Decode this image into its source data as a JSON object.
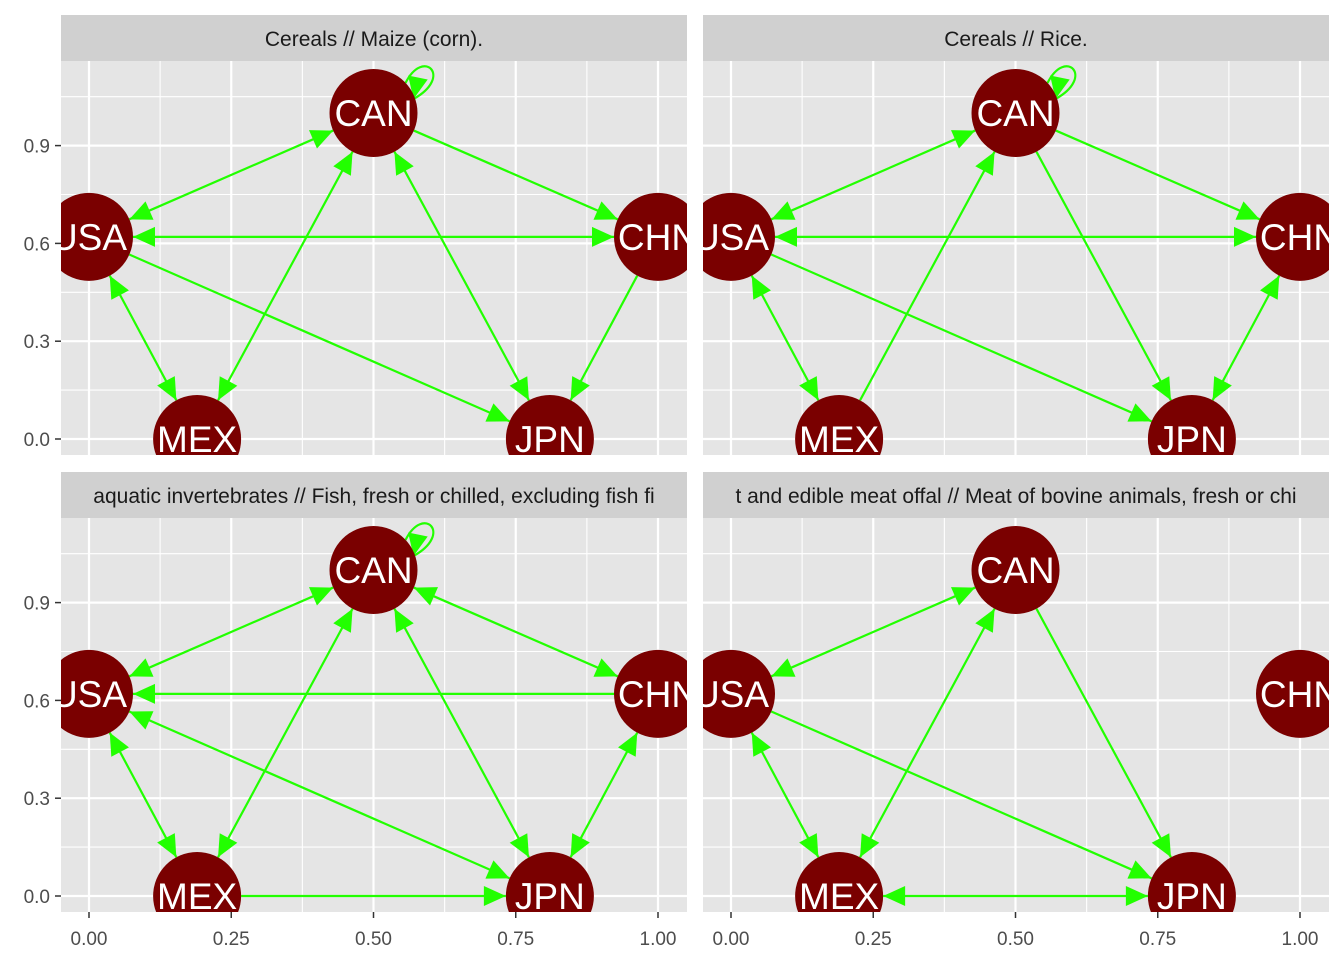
{
  "colors": {
    "panel_bg": "#e5e5e5",
    "strip_bg": "#d0d0d0",
    "grid": "#ffffff",
    "edge": "#22ff00",
    "node_fill": "#7a0000",
    "node_text": "#ffffff",
    "axis_text": "#4d4d4d",
    "strip_text": "#1a1a1a"
  },
  "axes": {
    "x": {
      "range": [
        0,
        1
      ],
      "ticks": [
        0,
        0.25,
        0.5,
        0.75,
        1
      ],
      "tick_labels": [
        "0.00",
        "0.25",
        "0.50",
        "0.75",
        "1.00"
      ]
    },
    "y": {
      "range": [
        0,
        1
      ],
      "ticks": [
        0,
        0.3,
        0.6,
        0.9
      ],
      "tick_labels": [
        "0.0",
        "0.3",
        "0.6",
        "0.9"
      ]
    }
  },
  "nodes": [
    {
      "id": "CAN",
      "label": "CAN",
      "x": 0.5,
      "y": 1.0
    },
    {
      "id": "USA",
      "label": "USA",
      "x": 0.0,
      "y": 0.62
    },
    {
      "id": "CHN",
      "label": "CHN",
      "x": 1.0,
      "y": 0.62
    },
    {
      "id": "MEX",
      "label": "MEX",
      "x": 0.19,
      "y": 0.0
    },
    {
      "id": "JPN",
      "label": "JPN",
      "x": 0.81,
      "y": 0.0
    }
  ],
  "panels": [
    {
      "title": "Cereals // Maize (corn).",
      "edges": [
        {
          "from": "USA",
          "to": "CAN",
          "both": true
        },
        {
          "from": "USA",
          "to": "CHN",
          "both": true
        },
        {
          "from": "USA",
          "to": "MEX",
          "both": true
        },
        {
          "from": "USA",
          "to": "JPN",
          "both": false
        },
        {
          "from": "MEX",
          "to": "CAN",
          "both": true
        },
        {
          "from": "CAN",
          "to": "JPN",
          "both": true
        },
        {
          "from": "CAN",
          "to": "CHN",
          "both": false
        },
        {
          "from": "CHN",
          "to": "JPN",
          "both": false
        },
        {
          "from": "CAN",
          "to": "CAN",
          "loop": true
        }
      ]
    },
    {
      "title": "Cereals // Rice.",
      "edges": [
        {
          "from": "USA",
          "to": "CAN",
          "both": true
        },
        {
          "from": "USA",
          "to": "CHN",
          "both": true
        },
        {
          "from": "USA",
          "to": "MEX",
          "both": true
        },
        {
          "from": "USA",
          "to": "JPN",
          "both": false
        },
        {
          "from": "MEX",
          "to": "CAN",
          "both": false
        },
        {
          "from": "CAN",
          "to": "JPN",
          "both": false
        },
        {
          "from": "CAN",
          "to": "CHN",
          "both": false
        },
        {
          "from": "JPN",
          "to": "CHN",
          "both": true
        },
        {
          "from": "CAN",
          "to": "CAN",
          "loop": true
        }
      ]
    },
    {
      "title": "aquatic invertebrates // Fish, fresh or chilled, excluding fish fi",
      "edges": [
        {
          "from": "USA",
          "to": "CAN",
          "both": true
        },
        {
          "from": "CHN",
          "to": "USA",
          "both": false
        },
        {
          "from": "USA",
          "to": "MEX",
          "both": true
        },
        {
          "from": "USA",
          "to": "JPN",
          "both": true
        },
        {
          "from": "MEX",
          "to": "CAN",
          "both": true
        },
        {
          "from": "CAN",
          "to": "JPN",
          "both": true
        },
        {
          "from": "CAN",
          "to": "CHN",
          "both": true
        },
        {
          "from": "JPN",
          "to": "CHN",
          "both": true
        },
        {
          "from": "MEX",
          "to": "JPN",
          "both": false
        },
        {
          "from": "CAN",
          "to": "CAN",
          "loop": true
        }
      ]
    },
    {
      "title": "t and edible meat offal // Meat of bovine animals, fresh or chi",
      "edges": [
        {
          "from": "USA",
          "to": "CAN",
          "both": true
        },
        {
          "from": "USA",
          "to": "MEX",
          "both": true
        },
        {
          "from": "USA",
          "to": "JPN",
          "both": false
        },
        {
          "from": "MEX",
          "to": "CAN",
          "both": true
        },
        {
          "from": "CAN",
          "to": "JPN",
          "both": false
        },
        {
          "from": "MEX",
          "to": "JPN",
          "both": true
        }
      ]
    }
  ]
}
